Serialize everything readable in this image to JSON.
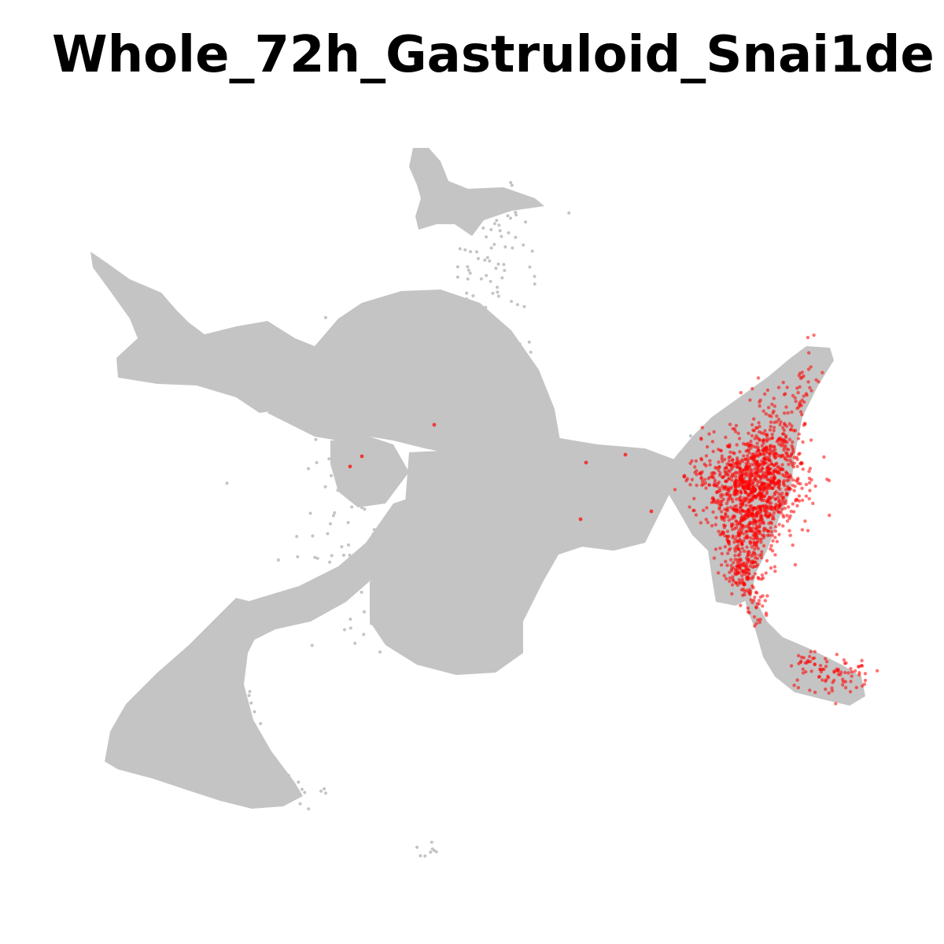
{
  "chart_data": {
    "type": "scatter",
    "title": "Whole_72h_Gastruloid_Snai1de",
    "xlabel": "",
    "ylabel": "",
    "axes_visible": false,
    "grid": false,
    "legend": false,
    "series": [
      {
        "role": "background",
        "color": "#c4c4c4",
        "description_regions": [
          "upper cluster",
          "left arm",
          "central upper lobe",
          "central mass",
          "lower-left lobe",
          "right branch",
          "lower-right tail"
        ]
      },
      {
        "role": "highlighted",
        "color": "#ff0000"
      }
    ]
  }
}
